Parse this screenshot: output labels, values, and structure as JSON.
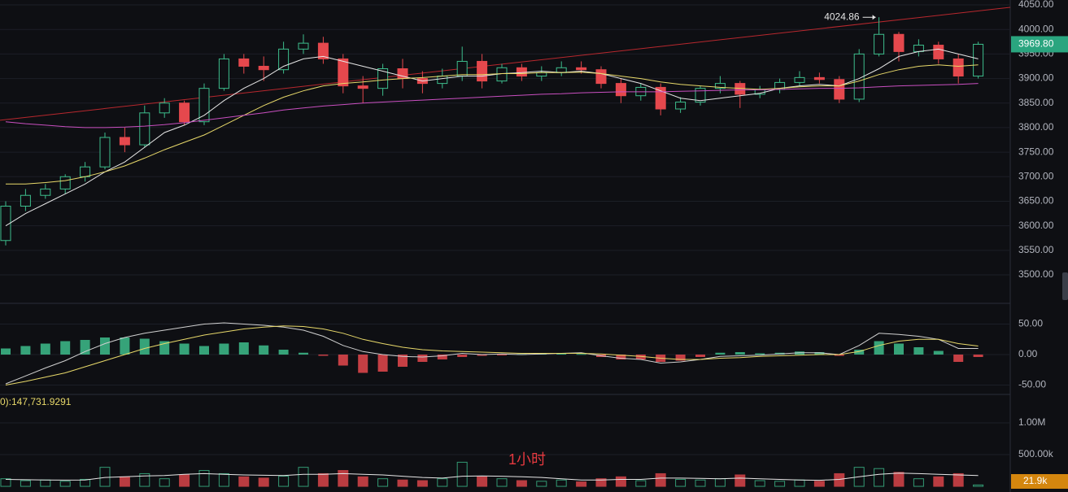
{
  "chart_data": [
    {
      "type": "candlestick",
      "up_color": "#3dbd8c",
      "down_color": "#e5484d",
      "grid": true,
      "ylim": [
        3447,
        4060
      ],
      "yticks": [
        {
          "value": 3500,
          "label": "3500.00"
        },
        {
          "value": 3550,
          "label": "3550.00"
        },
        {
          "value": 3600,
          "label": "3600.00"
        },
        {
          "value": 3650,
          "label": "3650.00"
        },
        {
          "value": 3700,
          "label": "3700.00"
        },
        {
          "value": 3750,
          "label": "3750.00"
        },
        {
          "value": 3800,
          "label": "3800.00"
        },
        {
          "value": 3850,
          "label": "3850.00"
        },
        {
          "value": 3900,
          "label": "3900.00"
        },
        {
          "value": 3950,
          "label": "3950.00"
        },
        {
          "value": 4000,
          "label": "4000.00"
        },
        {
          "value": 4050,
          "label": "4050.00"
        }
      ],
      "candles": [
        [
          3570,
          3650,
          3560,
          3640
        ],
        [
          3640,
          3675,
          3630,
          3662
        ],
        [
          3662,
          3685,
          3655,
          3675
        ],
        [
          3675,
          3705,
          3665,
          3700
        ],
        [
          3700,
          3730,
          3690,
          3720
        ],
        [
          3720,
          3790,
          3715,
          3780
        ],
        [
          3780,
          3800,
          3750,
          3765
        ],
        [
          3765,
          3845,
          3760,
          3830
        ],
        [
          3830,
          3860,
          3820,
          3850
        ],
        [
          3850,
          3855,
          3805,
          3812
        ],
        [
          3812,
          3890,
          3805,
          3880
        ],
        [
          3880,
          3950,
          3875,
          3940
        ],
        [
          3940,
          3950,
          3910,
          3925
        ],
        [
          3925,
          3945,
          3895,
          3918
        ],
        [
          3918,
          3975,
          3910,
          3960
        ],
        [
          3960,
          3990,
          3950,
          3972
        ],
        [
          3972,
          3985,
          3930,
          3940
        ],
        [
          3940,
          3950,
          3870,
          3885
        ],
        [
          3885,
          3905,
          3850,
          3880
        ],
        [
          3880,
          3930,
          3865,
          3920
        ],
        [
          3920,
          3940,
          3880,
          3900
        ],
        [
          3900,
          3915,
          3870,
          3890
        ],
        [
          3890,
          3920,
          3880,
          3905
        ],
        [
          3905,
          3965,
          3895,
          3935
        ],
        [
          3935,
          3950,
          3880,
          3895
        ],
        [
          3895,
          3930,
          3890,
          3922
        ],
        [
          3922,
          3930,
          3895,
          3905
        ],
        [
          3905,
          3925,
          3895,
          3912
        ],
        [
          3912,
          3935,
          3905,
          3922
        ],
        [
          3922,
          3935,
          3910,
          3918
        ],
        [
          3918,
          3925,
          3880,
          3890
        ],
        [
          3890,
          3900,
          3850,
          3865
        ],
        [
          3865,
          3890,
          3855,
          3882
        ],
        [
          3882,
          3890,
          3825,
          3838
        ],
        [
          3838,
          3862,
          3830,
          3852
        ],
        [
          3852,
          3885,
          3845,
          3880
        ],
        [
          3880,
          3905,
          3870,
          3890
        ],
        [
          3890,
          3895,
          3840,
          3868
        ],
        [
          3868,
          3885,
          3860,
          3878
        ],
        [
          3878,
          3900,
          3870,
          3892
        ],
        [
          3892,
          3915,
          3885,
          3902
        ],
        [
          3902,
          3912,
          3890,
          3898
        ],
        [
          3898,
          3905,
          3850,
          3858
        ],
        [
          3858,
          3960,
          3852,
          3950
        ],
        [
          3950,
          4024.86,
          3945,
          3990
        ],
        [
          3990,
          3995,
          3935,
          3955
        ],
        [
          3955,
          3980,
          3945,
          3968
        ],
        [
          3968,
          3975,
          3930,
          3940
        ],
        [
          3940,
          3950,
          3890,
          3905
        ],
        [
          3905,
          3975,
          3900,
          3969.8
        ]
      ],
      "series": [
        {
          "color": "#e6e6e6",
          "values": [
            3600,
            3625,
            3645,
            3665,
            3685,
            3710,
            3730,
            3760,
            3790,
            3805,
            3825,
            3855,
            3880,
            3900,
            3925,
            3940,
            3945,
            3935,
            3925,
            3915,
            3905,
            3895,
            3900,
            3905,
            3905,
            3910,
            3912,
            3915,
            3912,
            3915,
            3910,
            3900,
            3890,
            3875,
            3860,
            3855,
            3860,
            3865,
            3870,
            3880,
            3885,
            3888,
            3885,
            3900,
            3920,
            3945,
            3955,
            3960,
            3950,
            3940
          ]
        },
        {
          "color": "#e8d96a",
          "values": [
            3685,
            3685,
            3688,
            3692,
            3700,
            3710,
            3722,
            3738,
            3755,
            3770,
            3785,
            3805,
            3825,
            3845,
            3862,
            3875,
            3885,
            3890,
            3893,
            3897,
            3900,
            3902,
            3905,
            3908,
            3908,
            3910,
            3910,
            3912,
            3912,
            3913,
            3910,
            3905,
            3900,
            3893,
            3888,
            3885,
            3882,
            3880,
            3878,
            3880,
            3883,
            3885,
            3885,
            3895,
            3908,
            3918,
            3925,
            3928,
            3925,
            3928
          ]
        },
        {
          "color": "#c94fc0",
          "values": [
            3812,
            3808,
            3805,
            3802,
            3800,
            3800,
            3801,
            3803,
            3806,
            3810,
            3815,
            3820,
            3825,
            3830,
            3836,
            3840,
            3844,
            3847,
            3850,
            3852,
            3854,
            3856,
            3858,
            3860,
            3862,
            3864,
            3866,
            3868,
            3869,
            3871,
            3872,
            3873,
            3873,
            3873,
            3874,
            3875,
            3876,
            3877,
            3877,
            3878,
            3879,
            3880,
            3880,
            3881,
            3883,
            3885,
            3886,
            3887,
            3888,
            3890
          ]
        }
      ],
      "trendline": {
        "color": "#b8282e",
        "values": [
          3815,
          4045
        ]
      },
      "last_label": "3969.80"
    },
    {
      "type": "macd",
      "ylim": [
        -64,
        80
      ],
      "yticks": [
        {
          "value": -50,
          "label": "-50.00"
        },
        {
          "value": 0,
          "label": "0.00"
        },
        {
          "value": 50,
          "label": "50.00"
        }
      ],
      "histogram": {
        "up_color": "#3dbd8c",
        "down_color": "#e5484d",
        "values": [
          10,
          14,
          18,
          22,
          24,
          28,
          28,
          26,
          22,
          18,
          14,
          18,
          20,
          15,
          8,
          3,
          -2,
          -18,
          -30,
          -28,
          -20,
          -12,
          -8,
          -4,
          -2,
          -1,
          1,
          2,
          2,
          1,
          -4,
          -8,
          -8,
          -12,
          -10,
          -4,
          3,
          4,
          2,
          3,
          5,
          4,
          -2,
          8,
          22,
          18,
          12,
          6,
          -12,
          -4
        ]
      },
      "series": [
        {
          "color": "#d0d0d0",
          "values": [
            -48,
            -35,
            -22,
            -10,
            5,
            18,
            28,
            35,
            40,
            45,
            50,
            52,
            50,
            48,
            45,
            40,
            30,
            15,
            5,
            0,
            -3,
            -4,
            -2,
            2,
            0,
            1,
            0,
            1,
            2,
            3,
            -2,
            -6,
            -8,
            -14,
            -12,
            -8,
            -3,
            -2,
            -1,
            1,
            3,
            3,
            0,
            15,
            35,
            33,
            30,
            25,
            10,
            10
          ]
        },
        {
          "color": "#e8d96a",
          "values": [
            -50,
            -44,
            -37,
            -30,
            -20,
            -10,
            0,
            10,
            18,
            25,
            32,
            37,
            42,
            45,
            47,
            46,
            42,
            35,
            25,
            18,
            12,
            8,
            6,
            5,
            4,
            3,
            2,
            2,
            2,
            2,
            1,
            -1,
            -3,
            -6,
            -8,
            -8,
            -6,
            -5,
            -3,
            -2,
            -1,
            0,
            0,
            5,
            15,
            22,
            25,
            25,
            18,
            14
          ]
        }
      ]
    },
    {
      "type": "volume",
      "label": "0):147,731.9291",
      "annotation": "1小时",
      "ylim": [
        -25000,
        1436000
      ],
      "yticks": [
        {
          "value": 500000,
          "label": "500.00k"
        },
        {
          "value": 1000000,
          "label": "1.00M"
        }
      ],
      "values": [
        120000,
        90000,
        100000,
        80000,
        110000,
        300000,
        150000,
        200000,
        120000,
        180000,
        250000,
        200000,
        150000,
        130000,
        160000,
        300000,
        200000,
        250000,
        150000,
        120000,
        100000,
        90000,
        120000,
        380000,
        150000,
        120000,
        90000,
        80000,
        100000,
        70000,
        120000,
        150000,
        90000,
        200000,
        110000,
        100000,
        120000,
        180000,
        90000,
        80000,
        100000,
        80000,
        200000,
        300000,
        280000,
        220000,
        120000,
        150000,
        200000,
        21900
      ],
      "ma": {
        "color": "#e6e6e6",
        "values": [
          110000,
          105000,
          100000,
          98000,
          100000,
          140000,
          150000,
          165000,
          170000,
          190000,
          200000,
          190000,
          180000,
          175000,
          170000,
          190000,
          190000,
          200000,
          190000,
          180000,
          160000,
          140000,
          130000,
          160000,
          165000,
          160000,
          150000,
          140000,
          120000,
          100000,
          100000,
          110000,
          110000,
          130000,
          130000,
          125000,
          120000,
          130000,
          120000,
          110000,
          100000,
          95000,
          110000,
          150000,
          190000,
          210000,
          200000,
          190000,
          180000,
          170000
        ]
      },
      "last_label": "21.9k",
      "last_color": "#d4860e"
    }
  ]
}
